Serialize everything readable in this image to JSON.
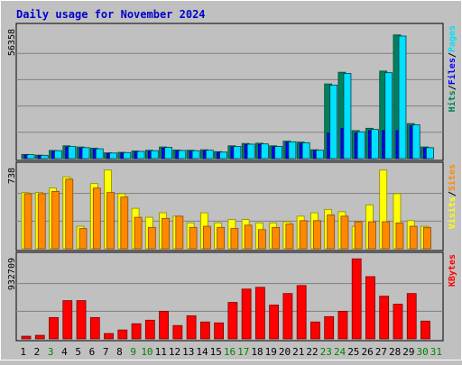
{
  "colors": {
    "background": "#c0c0c0",
    "plot_bg": "#c0c0c0",
    "grid": "#808080",
    "title": "#0000cc",
    "hits": "#00805c",
    "files": "#0000ff",
    "pages": "#00e0ff",
    "visits": "#ffff00",
    "sites": "#ff8800",
    "kbytes": "#ff0000",
    "weekend_day": "#008000",
    "weekday": "#000000",
    "label_separator": "#000000"
  },
  "chart_data": {
    "type": "bar",
    "title": "Daily usage for November 2024",
    "categories": [
      "1",
      "2",
      "3",
      "4",
      "5",
      "6",
      "7",
      "8",
      "9",
      "10",
      "11",
      "12",
      "13",
      "14",
      "15",
      "16",
      "17",
      "18",
      "19",
      "20",
      "21",
      "22",
      "23",
      "24",
      "25",
      "26",
      "27",
      "28",
      "29",
      "30",
      "31"
    ],
    "weekend_days": [
      "3",
      "9",
      "10",
      "16",
      "17",
      "23",
      "24",
      "30",
      "31"
    ],
    "panels": [
      {
        "id": "hits-panel",
        "max_label": "56358",
        "ymax": 56358,
        "legend": [
          "Hits",
          "/",
          "Files",
          "/",
          "Pages"
        ],
        "legend_colors": [
          "hits",
          "label_separator",
          "files",
          "label_separator",
          "pages"
        ],
        "series": [
          {
            "name": "Hits",
            "color": "hits",
            "values": [
              1800,
              1500,
              3500,
              5500,
              5000,
              4500,
              2500,
              2700,
              3300,
              3600,
              5000,
              3700,
              3600,
              3800,
              3000,
              5500,
              6500,
              6600,
              5500,
              7500,
              7100,
              3800,
              32000,
              37000,
              12000,
              13000,
              37500,
              53000,
              15000,
              5000,
              0
            ]
          },
          {
            "name": "Files",
            "color": "files",
            "values": [
              1500,
              1200,
              3100,
              5000,
              4500,
              4000,
              2200,
              2400,
              2900,
              3200,
              4500,
              3300,
              3200,
              3400,
              2700,
              5000,
              6000,
              6100,
              5100,
              7000,
              6600,
              3500,
              11000,
              13000,
              11000,
              12000,
              12000,
              12000,
              14000,
              4500,
              0
            ]
          },
          {
            "name": "Pages",
            "color": "pages",
            "values": [
              1700,
              1400,
              3400,
              5200,
              4700,
              4200,
              2400,
              2600,
              3100,
              3400,
              4800,
              3500,
              3400,
              3600,
              2800,
              5200,
              6200,
              6300,
              5200,
              7200,
              6800,
              3600,
              31500,
              36500,
              11500,
              12500,
              36800,
              52500,
              14500,
              4700,
              0
            ]
          }
        ]
      },
      {
        "id": "visits-panel",
        "max_label": "738",
        "ymax": 738,
        "legend": [
          "Visits",
          "/",
          "Sites"
        ],
        "legend_colors": [
          "visits",
          "label_separator",
          "sites"
        ],
        "series": [
          {
            "name": "Visits",
            "color": "visits",
            "values": [
              500,
              500,
              540,
              640,
              200,
              580,
              700,
              490,
              360,
              280,
              320,
              290,
              230,
              320,
              230,
              260,
              260,
              230,
              230,
              240,
              290,
              320,
              350,
              330,
              200,
              390,
              700,
              490,
              250,
              200,
              0
            ]
          },
          {
            "name": "Sites",
            "color": "sites",
            "values": [
              490,
              490,
              510,
              620,
              180,
              540,
              500,
              460,
              280,
              190,
              270,
              290,
              190,
              200,
              190,
              180,
              210,
              170,
              190,
              220,
              250,
              250,
              300,
              290,
              240,
              240,
              240,
              230,
              200,
              190,
              0
            ]
          }
        ]
      },
      {
        "id": "kbytes-panel",
        "max_label": "932709",
        "ymax": 932709,
        "legend": [
          "KBytes"
        ],
        "legend_colors": [
          "kbytes"
        ],
        "series": [
          {
            "name": "KBytes",
            "color": "kbytes",
            "values": [
              30000,
              40000,
              240000,
              430000,
              430000,
              240000,
              60000,
              100000,
              170000,
              210000,
              310000,
              150000,
              260000,
              190000,
              180000,
              410000,
              560000,
              580000,
              380000,
              510000,
              600000,
              190000,
              250000,
              310000,
              900000,
              700000,
              480000,
              390000,
              510000,
              200000,
              0
            ]
          }
        ]
      }
    ]
  }
}
